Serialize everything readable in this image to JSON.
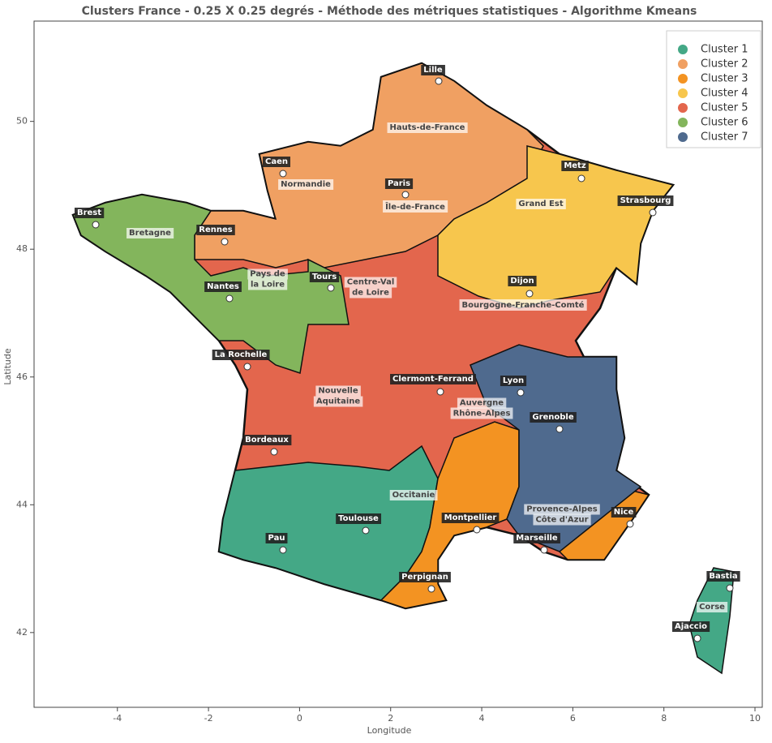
{
  "chart_data": {
    "type": "map",
    "title": "Clusters France - 0.25 X 0.25 degrés - Méthode des métriques statistiques - Algorithme Kmeans",
    "xlabel": "Longitude",
    "ylabel": "Latitude",
    "xlim": [
      -5.83,
      10.16
    ],
    "ylim": [
      40.83,
      51.57
    ],
    "xticks": [
      -4,
      -2,
      0,
      2,
      4,
      6,
      8,
      10
    ],
    "yticks": [
      42,
      44,
      46,
      48,
      50
    ],
    "legend": "upper right",
    "series": [
      {
        "name": "Cluster 1",
        "color": "#44a886"
      },
      {
        "name": "Cluster 2",
        "color": "#f0a062"
      },
      {
        "name": "Cluster 3",
        "color": "#f39322"
      },
      {
        "name": "Cluster 4",
        "color": "#f7c64d"
      },
      {
        "name": "Cluster 5",
        "color": "#e3664d"
      },
      {
        "name": "Cluster 6",
        "color": "#83b55c"
      },
      {
        "name": "Cluster 7",
        "color": "#4f6a8e"
      }
    ],
    "cities": [
      "Lille",
      "Caen",
      "Paris",
      "Metz",
      "Strasbourg",
      "Brest",
      "Rennes",
      "Tours",
      "Nantes",
      "Dijon",
      "La Rochelle",
      "Clermont-Ferrand",
      "Lyon",
      "Grenoble",
      "Bordeaux",
      "Montpellier",
      "Nice",
      "Toulouse",
      "Marseille",
      "Pau",
      "Perpignan",
      "Bastia",
      "Ajaccio"
    ],
    "regions": [
      [
        "Hauts-de-France"
      ],
      [
        "Normandie"
      ],
      [
        "Île-de-France"
      ],
      [
        "Grand Est"
      ],
      [
        "Bretagne"
      ],
      [
        "Pays de",
        "la Loire"
      ],
      [
        "Centre-Val",
        "de Loire"
      ],
      [
        "Bourgogne-Franche-Comté"
      ],
      [
        "Nouvelle",
        "Aquitaine"
      ],
      [
        "Auvergne",
        "Rhône-Alpes"
      ],
      [
        "Occitanie"
      ],
      [
        "Provence-Alpes",
        "Côte d'Azur"
      ],
      [
        "Corse"
      ]
    ]
  }
}
